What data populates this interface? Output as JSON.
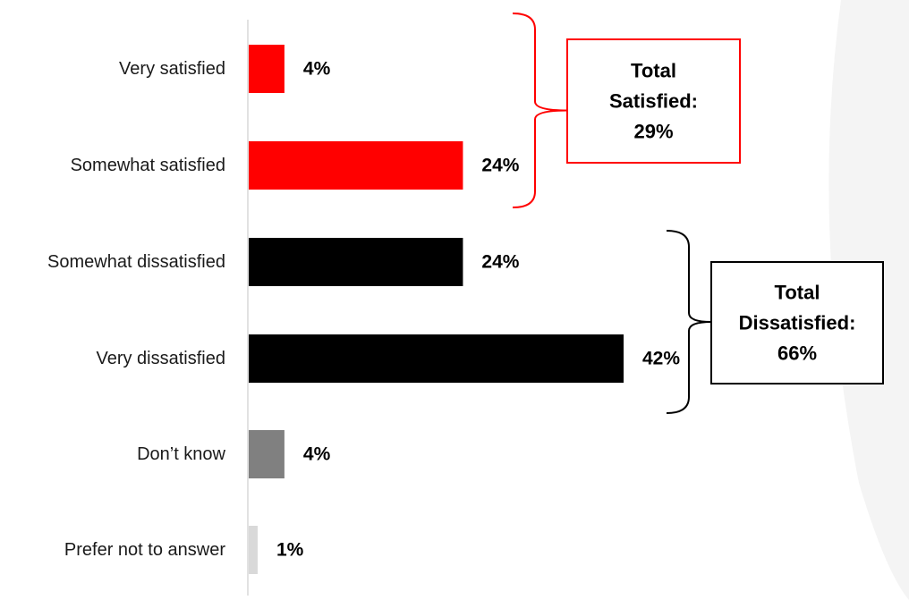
{
  "chart_data": {
    "type": "bar",
    "orientation": "horizontal",
    "categories": [
      "Very satisfied",
      "Somewhat satisfied",
      "Somewhat dissatisfied",
      "Very dissatisfied",
      "Don’t know",
      "Prefer not to answer"
    ],
    "values": [
      4,
      24,
      24,
      42,
      4,
      1
    ],
    "value_labels": [
      "4%",
      "24%",
      "24%",
      "42%",
      "4%",
      "1%"
    ],
    "bar_colors": [
      "#ff0000",
      "#ff0000",
      "#000000",
      "#000000",
      "#808080",
      "#d9d9d9"
    ],
    "xlim": [
      0,
      42
    ],
    "grid": false,
    "legend": "none",
    "title": "",
    "xlabel": "",
    "ylabel": ""
  },
  "callouts": [
    {
      "lines": [
        "Total",
        "Satisfied:",
        "29%"
      ],
      "border_color": "#ff0000",
      "bracket_color": "#ff0000",
      "covers": [
        "Very satisfied",
        "Somewhat satisfied"
      ]
    },
    {
      "lines": [
        "Total",
        "Dissatisfied:",
        "66%"
      ],
      "border_color": "#000000",
      "bracket_color": "#000000",
      "covers": [
        "Somewhat dissatisfied",
        "Very dissatisfied"
      ]
    }
  ],
  "colors": {
    "axis": "#d9d9d9",
    "background_shape": "#f4f4f4"
  }
}
